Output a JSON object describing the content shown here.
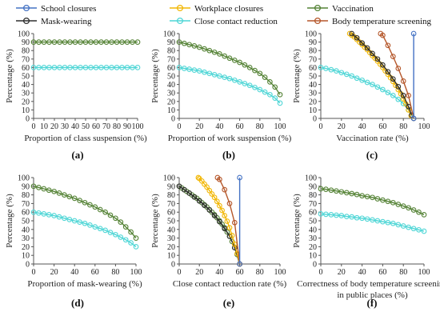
{
  "legend": [
    {
      "name": "School closures",
      "color": "#4472C4"
    },
    {
      "name": "Workplace closures",
      "color": "#F2B705"
    },
    {
      "name": "Vaccination",
      "color": "#548235"
    },
    {
      "name": "Mask-wearing",
      "color": "#2F2F2F"
    },
    {
      "name": "Close contact reduction",
      "color": "#4FD6D6"
    },
    {
      "name": "Body temperature screening",
      "color": "#B5572A"
    }
  ],
  "chart_data": [
    {
      "type": "line",
      "panel_label": "(a)",
      "xlabel": "Proportion of class suspension (%)",
      "ylabel": "Percentage (%)",
      "xlim": [
        0,
        100
      ],
      "ylim": [
        0,
        100
      ],
      "xticks": [
        0,
        10,
        20,
        30,
        40,
        50,
        60,
        70,
        80,
        90,
        100
      ],
      "yticks": [
        0,
        10,
        20,
        30,
        40,
        50,
        60,
        70,
        80,
        90,
        100
      ],
      "series": [
        {
          "name": "Vaccination",
          "color": "#548235",
          "x": [
            0,
            5,
            10,
            15,
            20,
            25,
            30,
            35,
            40,
            45,
            50,
            55,
            60,
            65,
            70,
            75,
            80,
            85,
            90,
            95,
            100
          ],
          "y": [
            90,
            90,
            90,
            90,
            90,
            90,
            90,
            90,
            90,
            90,
            90,
            90,
            90,
            90,
            90,
            90,
            90,
            90,
            90,
            90,
            90
          ]
        },
        {
          "name": "Close contact reduction",
          "color": "#4FD6D6",
          "x": [
            0,
            5,
            10,
            15,
            20,
            25,
            30,
            35,
            40,
            45,
            50,
            55,
            60,
            65,
            70,
            75,
            80,
            85,
            90,
            95,
            100
          ],
          "y": [
            60,
            60,
            60,
            60,
            60,
            60,
            60,
            60,
            60,
            60,
            60,
            60,
            60,
            60,
            60,
            60,
            60,
            60,
            60,
            60,
            60
          ]
        }
      ]
    },
    {
      "type": "line",
      "panel_label": "(b)",
      "xlabel": "Proportion of work suspension (%)",
      "ylabel": "Percentage (%)",
      "xlim": [
        0,
        100
      ],
      "ylim": [
        0,
        100
      ],
      "xticks": [
        0,
        20,
        40,
        60,
        80,
        100
      ],
      "yticks": [
        0,
        10,
        20,
        30,
        40,
        50,
        60,
        70,
        80,
        90,
        100
      ],
      "series": [
        {
          "name": "Vaccination",
          "color": "#548235",
          "x": [
            0,
            5,
            10,
            15,
            20,
            25,
            30,
            35,
            40,
            45,
            50,
            55,
            60,
            65,
            70,
            75,
            80,
            85,
            90,
            95,
            100
          ],
          "y": [
            90,
            88.5,
            87,
            85.5,
            84,
            82,
            80,
            78,
            76,
            73.5,
            71,
            68.5,
            66,
            63,
            60,
            56.5,
            53,
            48.5,
            43,
            37,
            28
          ]
        },
        {
          "name": "Close contact reduction",
          "color": "#4FD6D6",
          "x": [
            0,
            5,
            10,
            15,
            20,
            25,
            30,
            35,
            40,
            45,
            50,
            55,
            60,
            65,
            70,
            75,
            80,
            85,
            90,
            95,
            100
          ],
          "y": [
            60,
            59,
            58,
            57,
            56,
            54.5,
            53,
            51.5,
            50,
            48.5,
            47,
            45,
            43,
            41,
            39,
            36.5,
            34,
            31,
            28,
            24,
            18
          ]
        }
      ]
    },
    {
      "type": "line",
      "panel_label": "(c)",
      "xlabel": "Vaccination rate (%)",
      "ylabel": "Percentage (%)",
      "xlim": [
        0,
        100
      ],
      "ylim": [
        0,
        100
      ],
      "xticks": [
        0,
        20,
        40,
        60,
        80,
        100
      ],
      "yticks": [
        0,
        10,
        20,
        30,
        40,
        50,
        60,
        70,
        80,
        90,
        100
      ],
      "series": [
        {
          "name": "Close contact reduction",
          "color": "#4FD6D6",
          "x": [
            0,
            5,
            10,
            15,
            20,
            25,
            30,
            35,
            40,
            45,
            50,
            55,
            60,
            65,
            70,
            75,
            80,
            85,
            90
          ],
          "y": [
            60,
            59,
            57.5,
            56,
            54,
            52,
            50,
            47.5,
            45,
            42.5,
            40,
            37,
            34,
            30.5,
            27,
            22.5,
            17.5,
            10,
            0
          ]
        },
        {
          "name": "Workplace closures",
          "color": "#F2B705",
          "x": [
            28,
            30,
            32.5,
            35,
            37.5,
            40,
            42.5,
            45,
            47.5,
            50,
            52.5,
            55,
            57.5,
            60,
            62.5,
            65,
            67.5,
            70,
            72.5,
            75,
            77.5,
            80,
            82.5,
            85,
            87.5
          ],
          "y": [
            100,
            98,
            96,
            93,
            90,
            87,
            84,
            81,
            77.5,
            74,
            71,
            67.5,
            64,
            60,
            56,
            52,
            48,
            43.5,
            39,
            34,
            29,
            23,
            17,
            10,
            3
          ]
        },
        {
          "name": "Mask-wearing",
          "color": "#2F2F2F",
          "x": [
            30,
            35,
            40,
            45,
            50,
            55,
            60,
            65,
            70,
            75,
            80,
            85,
            88
          ],
          "y": [
            100,
            95,
            89,
            83,
            76.5,
            70,
            63,
            55,
            46.5,
            37.5,
            27,
            14,
            4
          ]
        },
        {
          "name": "Body temperature screening",
          "color": "#B5572A",
          "x": [
            58,
            60,
            65,
            70,
            75,
            80,
            85,
            90
          ],
          "y": [
            100,
            98,
            86,
            73,
            59,
            44,
            27,
            0
          ]
        },
        {
          "name": "School closures",
          "color": "#4472C4",
          "x": [
            90,
            90
          ],
          "y": [
            100,
            0
          ]
        }
      ]
    },
    {
      "type": "line",
      "panel_label": "(d)",
      "xlabel": "Proportion of mask-wearing (%)",
      "ylabel": "Percentage (%)",
      "xlim": [
        0,
        100
      ],
      "ylim": [
        0,
        100
      ],
      "xticks": [
        0,
        20,
        40,
        60,
        80,
        100
      ],
      "yticks": [
        0,
        10,
        20,
        30,
        40,
        50,
        60,
        70,
        80,
        90,
        100
      ],
      "series": [
        {
          "name": "Vaccination",
          "color": "#548235",
          "x": [
            0,
            5,
            10,
            15,
            20,
            25,
            30,
            35,
            40,
            45,
            50,
            55,
            60,
            65,
            70,
            75,
            80,
            85,
            90,
            95,
            100
          ],
          "y": [
            90,
            88.5,
            87,
            85.5,
            84,
            82,
            80,
            78,
            76,
            73.5,
            71,
            68.5,
            66,
            63,
            60,
            56.5,
            53,
            48.5,
            43,
            37,
            30
          ]
        },
        {
          "name": "Close contact reduction",
          "color": "#4FD6D6",
          "x": [
            0,
            5,
            10,
            15,
            20,
            25,
            30,
            35,
            40,
            45,
            50,
            55,
            60,
            65,
            70,
            75,
            80,
            85,
            90,
            95,
            100
          ],
          "y": [
            60,
            59,
            58,
            57,
            56,
            54.5,
            53,
            51.5,
            50,
            48.5,
            47,
            45,
            43,
            41,
            39,
            36.5,
            34,
            31,
            28,
            24.5,
            20
          ]
        }
      ]
    },
    {
      "type": "line",
      "panel_label": "(e)",
      "xlabel": "Close contact reduction rate (%)",
      "ylabel": "Percentage (%)",
      "xlim": [
        0,
        100
      ],
      "ylim": [
        0,
        100
      ],
      "xticks": [
        0,
        20,
        40,
        60,
        80,
        100
      ],
      "yticks": [
        0,
        10,
        20,
        30,
        40,
        50,
        60,
        70,
        80,
        90,
        100
      ],
      "series": [
        {
          "name": "Vaccination",
          "color": "#548235",
          "x": [
            0,
            2.5,
            5,
            7.5,
            10,
            12.5,
            15,
            17.5,
            20,
            22.5,
            25,
            27.5,
            30,
            32.5,
            35,
            37.5,
            40,
            42.5,
            45,
            47.5,
            50,
            52.5,
            55,
            57.5,
            60
          ],
          "y": [
            90,
            88,
            86,
            84,
            82,
            80,
            78,
            76,
            73.5,
            71,
            68.5,
            66,
            63,
            60,
            57,
            53.5,
            50,
            46,
            42,
            37,
            32,
            26,
            19,
            11,
            0
          ]
        },
        {
          "name": "Mask-wearing",
          "color": "#2F2F2F",
          "x": [
            0,
            5,
            10,
            15,
            20,
            25,
            30,
            35,
            40,
            45,
            50,
            55,
            60
          ],
          "y": [
            90,
            86,
            82,
            77.5,
            73,
            68,
            62.5,
            56,
            49,
            41,
            32,
            19,
            0
          ]
        },
        {
          "name": "Workplace closures",
          "color": "#F2B705",
          "x": [
            19,
            20,
            22.5,
            25,
            27.5,
            30,
            32.5,
            35,
            37.5,
            40,
            42.5,
            45,
            47.5,
            50,
            52.5,
            55,
            57.5,
            60
          ],
          "y": [
            100,
            99,
            96,
            92.5,
            89,
            85,
            81,
            77,
            72.5,
            67.5,
            62,
            56,
            49.5,
            42,
            33,
            23,
            12,
            0
          ]
        },
        {
          "name": "Body temperature screening",
          "color": "#B5572A",
          "x": [
            38,
            40,
            45,
            50,
            55,
            60
          ],
          "y": [
            100,
            98,
            86,
            70,
            48,
            0
          ]
        },
        {
          "name": "School closures",
          "color": "#4472C4",
          "x": [
            60,
            60
          ],
          "y": [
            100,
            0
          ]
        }
      ]
    },
    {
      "type": "line",
      "panel_label": "(f)",
      "xlabel": "Correctness of body temperature screening in public places (%)",
      "ylabel": "Percentage (%)",
      "xlim": [
        0,
        100
      ],
      "ylim": [
        0,
        100
      ],
      "xticks": [
        0,
        20,
        40,
        60,
        80,
        100
      ],
      "yticks": [
        0,
        10,
        20,
        30,
        40,
        50,
        60,
        70,
        80,
        90,
        100
      ],
      "series": [
        {
          "name": "Vaccination",
          "color": "#548235",
          "x": [
            0,
            5,
            10,
            15,
            20,
            25,
            30,
            35,
            40,
            45,
            50,
            55,
            60,
            65,
            70,
            75,
            80,
            85,
            90,
            95,
            100
          ],
          "y": [
            87,
            86.5,
            85.5,
            84.5,
            83.5,
            82.5,
            81.5,
            80.5,
            79,
            78,
            77,
            75.5,
            74,
            72.5,
            71,
            69,
            67,
            65,
            62.5,
            60,
            57
          ]
        },
        {
          "name": "Close contact reduction",
          "color": "#4FD6D6",
          "x": [
            0,
            5,
            10,
            15,
            20,
            25,
            30,
            35,
            40,
            45,
            50,
            55,
            60,
            65,
            70,
            75,
            80,
            85,
            90,
            95,
            100
          ],
          "y": [
            58,
            57.5,
            57,
            56.5,
            56,
            55,
            54.5,
            53.5,
            53,
            52,
            51,
            50,
            49,
            48,
            47,
            45.5,
            44,
            42.5,
            41,
            39.5,
            38
          ]
        }
      ]
    }
  ]
}
